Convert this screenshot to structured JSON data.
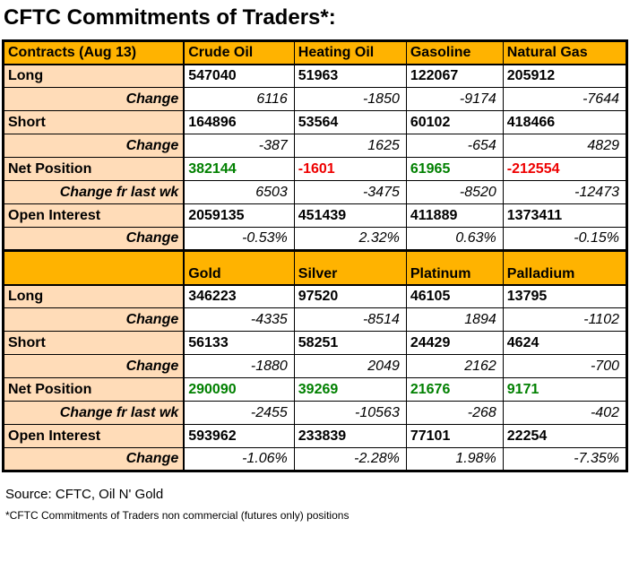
{
  "page": {
    "title": "CFTC Commitments of Traders*:",
    "source": "Source: CFTC, Oil N' Gold",
    "note": "*CFTC Commitments of Traders non commercial (futures only) positions"
  },
  "colors": {
    "header_bg": "#FFB300",
    "label_bg": "#FFDCB8",
    "positive": "#008000",
    "negative": "#EE0000"
  },
  "chart_data": [
    {
      "type": "table",
      "title": "CFTC Commitments of Traders (Aug 13) - Energy",
      "columns": [
        "Contracts (Aug 13)",
        "Crude Oil",
        "Heating Oil",
        "Gasoline",
        "Natural Gas"
      ],
      "rows": [
        [
          "Long",
          547040,
          51963,
          122067,
          205912
        ],
        [
          "Change",
          6116,
          -1850,
          -9174,
          -7644
        ],
        [
          "Short",
          164896,
          53564,
          60102,
          418466
        ],
        [
          "Change",
          -387,
          1625,
          -654,
          4829
        ],
        [
          "Net Position",
          382144,
          -1601,
          61965,
          -212554
        ],
        [
          "Change fr last wk",
          6503,
          -3475,
          -8520,
          -12473
        ],
        [
          "Open Interest",
          2059135,
          451439,
          411889,
          1373411
        ],
        [
          "Change",
          "-0.53%",
          "2.32%",
          "0.63%",
          "-0.15%"
        ]
      ]
    },
    {
      "type": "table",
      "title": "CFTC Commitments of Traders (Aug 13) - Metals",
      "columns": [
        "",
        "Gold",
        "Silver",
        "Platinum",
        "Palladium"
      ],
      "rows": [
        [
          "Long",
          346223,
          97520,
          46105,
          13795
        ],
        [
          "Change",
          -4335,
          -8514,
          1894,
          -1102
        ],
        [
          "Short",
          56133,
          58251,
          24429,
          4624
        ],
        [
          "Change",
          -1880,
          2049,
          2162,
          -700
        ],
        [
          "Net Position",
          290090,
          39269,
          21676,
          9171
        ],
        [
          "Change fr last wk",
          -2455,
          -10563,
          -268,
          -402
        ],
        [
          "Open Interest",
          593962,
          233839,
          77101,
          22254
        ],
        [
          "Change",
          "-1.06%",
          "-2.28%",
          "1.98%",
          "-7.35%"
        ]
      ]
    }
  ]
}
